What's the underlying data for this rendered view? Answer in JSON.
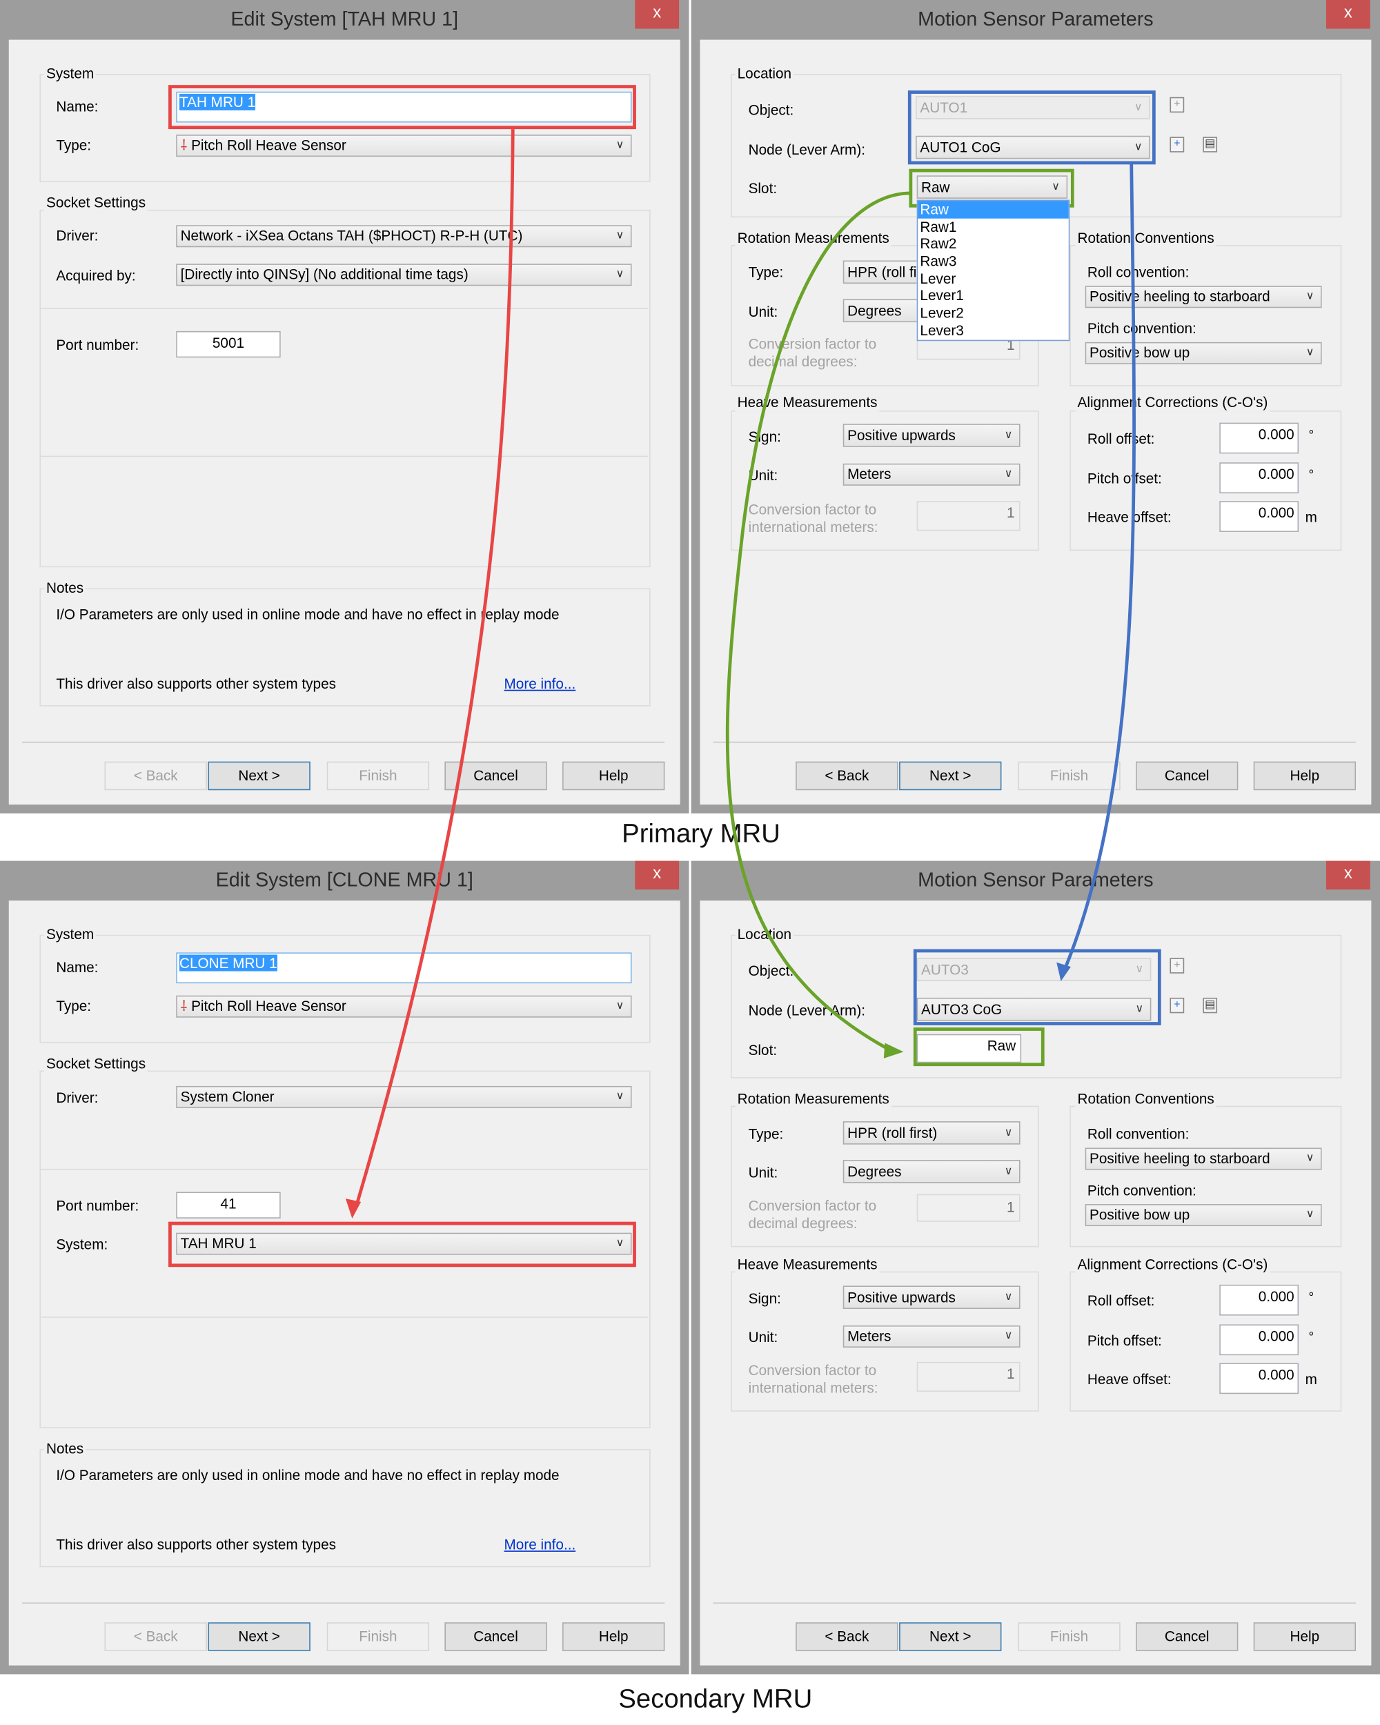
{
  "colors": {
    "highlight_red": "#e84545",
    "highlight_blue": "#4472c4",
    "highlight_green": "#6aa329",
    "close_button": "#c75050",
    "selection": "#3399ff"
  },
  "primary": {
    "caption": "Primary MRU",
    "edit_system": {
      "title": "Edit System [TAH MRU 1]",
      "close": "x",
      "system_group": "System",
      "name_label": "Name:",
      "name_value": "TAH MRU 1",
      "type_label": "Type:",
      "type_value": "Pitch Roll Heave Sensor",
      "socket_group": "Socket Settings",
      "driver_label": "Driver:",
      "driver_value": "Network - iXSea Octans TAH ($PHOCT) R-P-H (UTC)",
      "acquired_label": "Acquired by:",
      "acquired_value": "[Directly into QINSy] (No additional time tags)",
      "port_label": "Port number:",
      "port_value": "5001",
      "notes_group": "Notes",
      "note1": "I/O Parameters are only used in online mode and have no effect in replay mode",
      "note2": "This driver also supports other system types",
      "more_info": "More info...",
      "buttons": {
        "back": "< Back",
        "next": "Next >",
        "finish": "Finish",
        "cancel": "Cancel",
        "help": "Help"
      }
    },
    "motion_sensor": {
      "title": "Motion Sensor Parameters",
      "close": "x",
      "location_group": "Location",
      "object_label": "Object:",
      "object_value": "AUTO1",
      "node_label": "Node (Lever Arm):",
      "node_value": "AUTO1 CoG",
      "slot_label": "Slot:",
      "slot_value": "Raw",
      "slot_options": [
        "Raw",
        "Raw1",
        "Raw2",
        "Raw3",
        "Lever",
        "Lever1",
        "Lever2",
        "Lever3"
      ],
      "rot_meas_group": "Rotation Measurements",
      "type_label": "Type:",
      "type_value": "HPR (roll first)",
      "unit_label": "Unit:",
      "unit_value": "Degrees",
      "conv_deg_label1": "Conversion factor to",
      "conv_deg_label2": "decimal degrees:",
      "conv_deg_value": "1",
      "rot_conv_group": "Rotation Conventions",
      "roll_conv_label": "Roll convention:",
      "roll_conv_value": "Positive heeling to starboard",
      "pitch_conv_label": "Pitch convention:",
      "pitch_conv_value": "Positive bow up",
      "heave_group": "Heave Measurements",
      "sign_label": "Sign:",
      "sign_value": "Positive upwards",
      "heave_unit_label": "Unit:",
      "heave_unit_value": "Meters",
      "conv_m_label1": "Conversion factor to",
      "conv_m_label2": "international meters:",
      "conv_m_value": "1",
      "align_group": "Alignment Corrections (C-O's)",
      "roll_off_label": "Roll offset:",
      "roll_off_value": "0.000",
      "pitch_off_label": "Pitch offset:",
      "pitch_off_value": "0.000",
      "heave_off_label": "Heave offset:",
      "heave_off_value": "0.000",
      "deg_unit": "°",
      "m_unit": "m",
      "buttons": {
        "back": "< Back",
        "next": "Next >",
        "finish": "Finish",
        "cancel": "Cancel",
        "help": "Help"
      }
    }
  },
  "secondary": {
    "caption": "Secondary MRU",
    "edit_system": {
      "title": "Edit System [CLONE MRU 1]",
      "close": "x",
      "system_group": "System",
      "name_label": "Name:",
      "name_value": "CLONE MRU 1",
      "type_label": "Type:",
      "type_value": "Pitch Roll Heave Sensor",
      "socket_group": "Socket Settings",
      "driver_label": "Driver:",
      "driver_value": "System Cloner",
      "port_label": "Port number:",
      "port_value": "41",
      "system_label": "System:",
      "system_value": "TAH MRU 1",
      "notes_group": "Notes",
      "note1": "I/O Parameters are only used in online mode and have no effect in replay mode",
      "note2": "This driver also supports other system types",
      "more_info": "More info...",
      "buttons": {
        "back": "< Back",
        "next": "Next >",
        "finish": "Finish",
        "cancel": "Cancel",
        "help": "Help"
      }
    },
    "motion_sensor": {
      "title": "Motion Sensor Parameters",
      "close": "x",
      "location_group": "Location",
      "object_label": "Object:",
      "object_value": "AUTO3",
      "node_label": "Node (Lever Arm):",
      "node_value": "AUTO3 CoG",
      "slot_label": "Slot:",
      "slot_value": "Raw",
      "rot_meas_group": "Rotation Measurements",
      "type_label": "Type:",
      "type_value": "HPR (roll first)",
      "unit_label": "Unit:",
      "unit_value": "Degrees",
      "conv_deg_label1": "Conversion factor to",
      "conv_deg_label2": "decimal degrees:",
      "conv_deg_value": "1",
      "rot_conv_group": "Rotation Conventions",
      "roll_conv_label": "Roll convention:",
      "roll_conv_value": "Positive heeling to starboard",
      "pitch_conv_label": "Pitch convention:",
      "pitch_conv_value": "Positive bow up",
      "heave_group": "Heave Measurements",
      "sign_label": "Sign:",
      "sign_value": "Positive upwards",
      "heave_unit_label": "Unit:",
      "heave_unit_value": "Meters",
      "conv_m_label1": "Conversion factor to",
      "conv_m_label2": "international meters:",
      "conv_m_value": "1",
      "align_group": "Alignment Corrections (C-O's)",
      "roll_off_label": "Roll offset:",
      "roll_off_value": "0.000",
      "pitch_off_label": "Pitch offset:",
      "pitch_off_value": "0.000",
      "heave_off_label": "Heave offset:",
      "heave_off_value": "0.000",
      "deg_unit": "°",
      "m_unit": "m",
      "buttons": {
        "back": "< Back",
        "next": "Next >",
        "finish": "Finish",
        "cancel": "Cancel",
        "help": "Help"
      }
    }
  }
}
